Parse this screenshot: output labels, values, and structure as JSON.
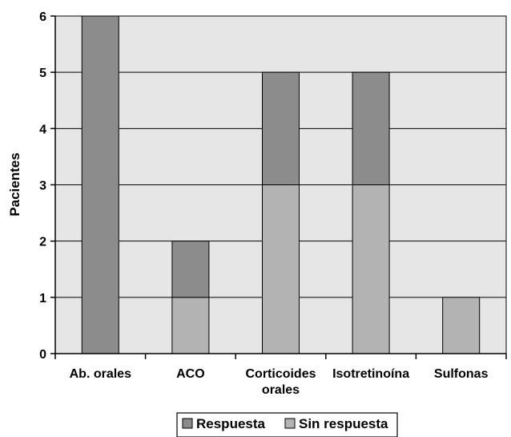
{
  "chart_data": {
    "type": "bar",
    "stacked": true,
    "categories": [
      "Ab. orales",
      "ACO",
      "Corticoides orales",
      "Isotretinoína",
      "Sulfonas"
    ],
    "series": [
      {
        "name": "Sin respuesta",
        "values": [
          0,
          1,
          3,
          3,
          1
        ],
        "color": "#b3b3b3"
      },
      {
        "name": "Respuesta",
        "values": [
          6,
          1,
          2,
          2,
          0
        ],
        "color": "#8c8c8c"
      }
    ],
    "ylabel": "Pacientes",
    "xlabel": "",
    "ylim": [
      0,
      6
    ],
    "yticks": [
      0,
      1,
      2,
      3,
      4,
      5,
      6
    ],
    "grid": true,
    "plot_background": "#e6e6e6",
    "legend": {
      "position": "bottom",
      "entries": [
        "Respuesta",
        "Sin respuesta"
      ]
    }
  }
}
